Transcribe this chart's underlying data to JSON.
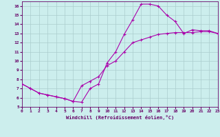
{
  "title": "",
  "xlabel": "Windchill (Refroidissement éolien,°C)",
  "bg_color": "#cceeed",
  "grid_color": "#aacccc",
  "line_color": "#aa00aa",
  "line1_x": [
    0,
    1,
    2,
    3,
    4,
    5,
    6,
    7,
    8,
    9,
    10,
    11,
    12,
    13,
    14,
    15,
    16,
    17,
    18,
    19,
    20,
    21,
    22,
    23
  ],
  "line1_y": [
    7.5,
    7.0,
    6.5,
    6.3,
    6.1,
    5.9,
    5.6,
    5.5,
    7.0,
    7.5,
    9.8,
    11.0,
    12.9,
    14.5,
    16.2,
    16.2,
    16.0,
    15.0,
    14.3,
    13.0,
    13.4,
    13.3,
    13.3,
    13.0
  ],
  "line2_x": [
    0,
    1,
    2,
    3,
    4,
    5,
    6,
    7,
    8,
    9,
    10,
    11,
    12,
    13,
    14,
    15,
    16,
    17,
    18,
    19,
    20,
    21,
    22,
    23
  ],
  "line2_y": [
    7.5,
    7.0,
    6.5,
    6.3,
    6.1,
    5.9,
    5.6,
    7.3,
    7.8,
    8.3,
    9.5,
    10.0,
    11.0,
    12.0,
    12.3,
    12.6,
    12.9,
    13.0,
    13.1,
    13.1,
    13.1,
    13.2,
    13.2,
    13.0
  ],
  "xlim": [
    0,
    23
  ],
  "ylim": [
    5,
    16.5
  ],
  "yticks": [
    5,
    6,
    7,
    8,
    9,
    10,
    11,
    12,
    13,
    14,
    15,
    16
  ],
  "xticks": [
    0,
    1,
    2,
    3,
    4,
    5,
    6,
    7,
    8,
    9,
    10,
    11,
    12,
    13,
    14,
    15,
    16,
    17,
    18,
    19,
    20,
    21,
    22,
    23
  ]
}
